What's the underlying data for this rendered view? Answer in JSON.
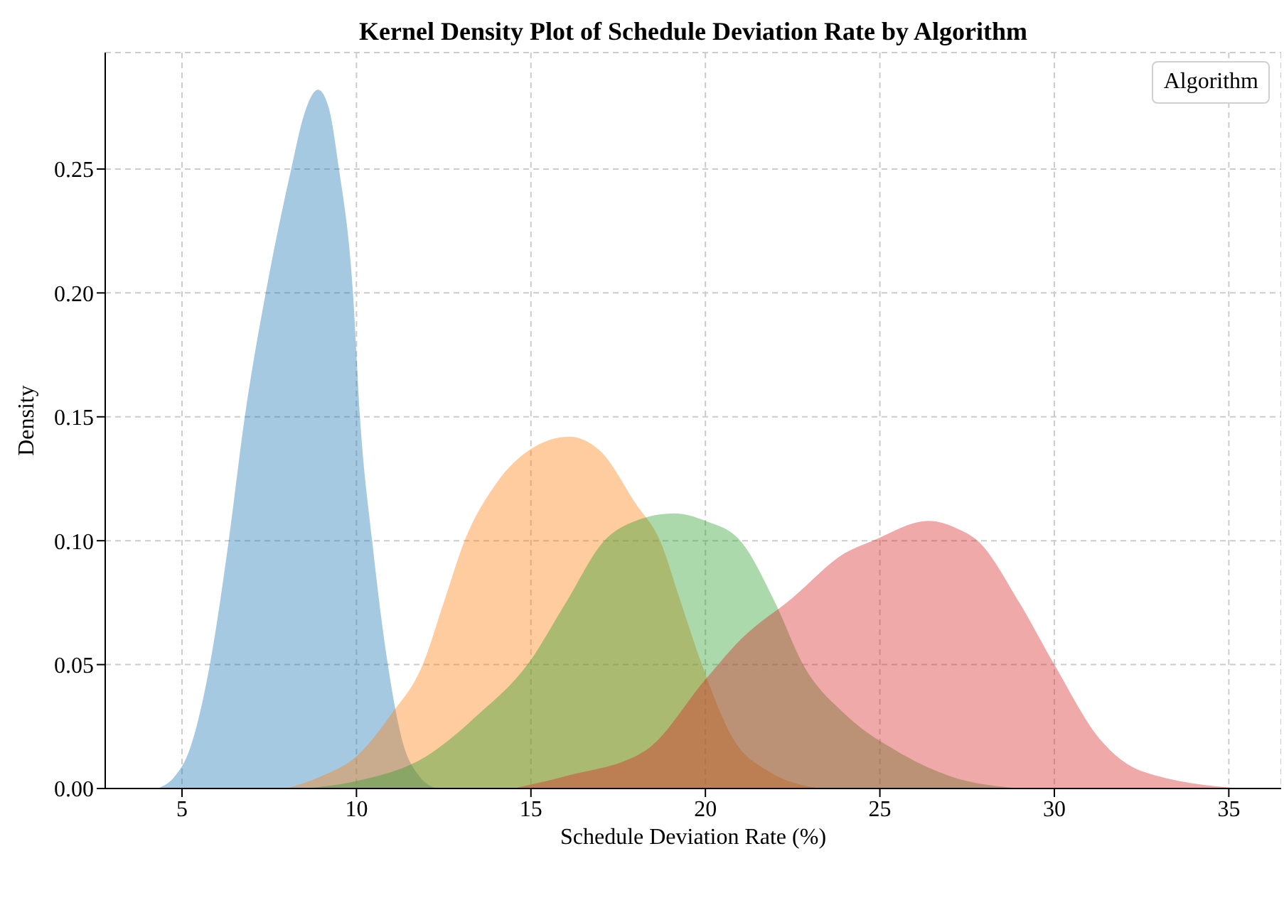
{
  "chart_data": {
    "type": "area",
    "title": "Kernel Density Plot of Schedule Deviation Rate by Algorithm",
    "xlabel": "Schedule Deviation Rate (%)",
    "ylabel": "Density",
    "legend_title": "Algorithm",
    "grid": true,
    "xlim": [
      2.8,
      36.5
    ],
    "xticks": [
      5,
      10,
      15,
      20,
      25,
      30,
      35
    ],
    "ylim": [
      0,
      0.297
    ],
    "yticks": [
      {
        "value": 0,
        "label": "0.00"
      },
      {
        "value": 0.05,
        "label": "0.05"
      },
      {
        "value": 0.1,
        "label": "0.10"
      },
      {
        "value": 0.15,
        "label": "0.15"
      },
      {
        "value": 0.2,
        "label": "0.20"
      },
      {
        "value": 0.25,
        "label": "0.25"
      }
    ],
    "series": [
      {
        "color": "#1f77b4",
        "x": [
          4.3,
          4.8,
          5.2,
          5.8,
          6.34,
          6.8,
          7.4,
          8.13,
          8.5,
          8.9,
          9.2,
          9.5,
          9.9,
          10.1,
          10.45,
          10.9,
          11.3,
          11.8,
          12.3
        ],
        "values": [
          0,
          0.005,
          0.015,
          0.05,
          0.1,
          0.15,
          0.2,
          0.25,
          0.272,
          0.282,
          0.275,
          0.25,
          0.2,
          0.15,
          0.1,
          0.05,
          0.02,
          0.005,
          0
        ]
      },
      {
        "color": "#ff7f0e",
        "x": [
          8,
          9,
          10,
          11,
          11.9,
          12.5,
          13.1,
          14,
          15,
          16.1,
          17,
          18,
          18.7,
          19.3,
          19.9,
          20.8,
          21.8,
          23.3
        ],
        "values": [
          0,
          0.005,
          0.013,
          0.03,
          0.05,
          0.075,
          0.1,
          0.123,
          0.137,
          0.142,
          0.136,
          0.115,
          0.1,
          0.075,
          0.05,
          0.02,
          0.007,
          0
        ]
      },
      {
        "color": "#2ca02c",
        "x": [
          8.5,
          10,
          12,
          13.5,
          14.9,
          16,
          17.1,
          18,
          19.1,
          20,
          21,
          22,
          22.8,
          24,
          25.5,
          27,
          29
        ],
        "values": [
          0,
          0.003,
          0.013,
          0.03,
          0.05,
          0.075,
          0.1,
          0.108,
          0.111,
          0.108,
          0.1,
          0.075,
          0.05,
          0.03,
          0.015,
          0.005,
          0
        ]
      },
      {
        "color": "#d62728",
        "x": [
          14.5,
          16,
          18.3,
          20,
          21,
          22.5,
          24,
          24.8,
          26.4,
          27.2,
          27.8,
          29,
          30,
          31.3,
          32.5,
          35.3
        ],
        "values": [
          0,
          0.005,
          0.0155,
          0.044,
          0.06,
          0.077,
          0.095,
          0.1,
          0.108,
          0.105,
          0.1,
          0.075,
          0.05,
          0.02,
          0.007,
          0
        ]
      }
    ]
  }
}
